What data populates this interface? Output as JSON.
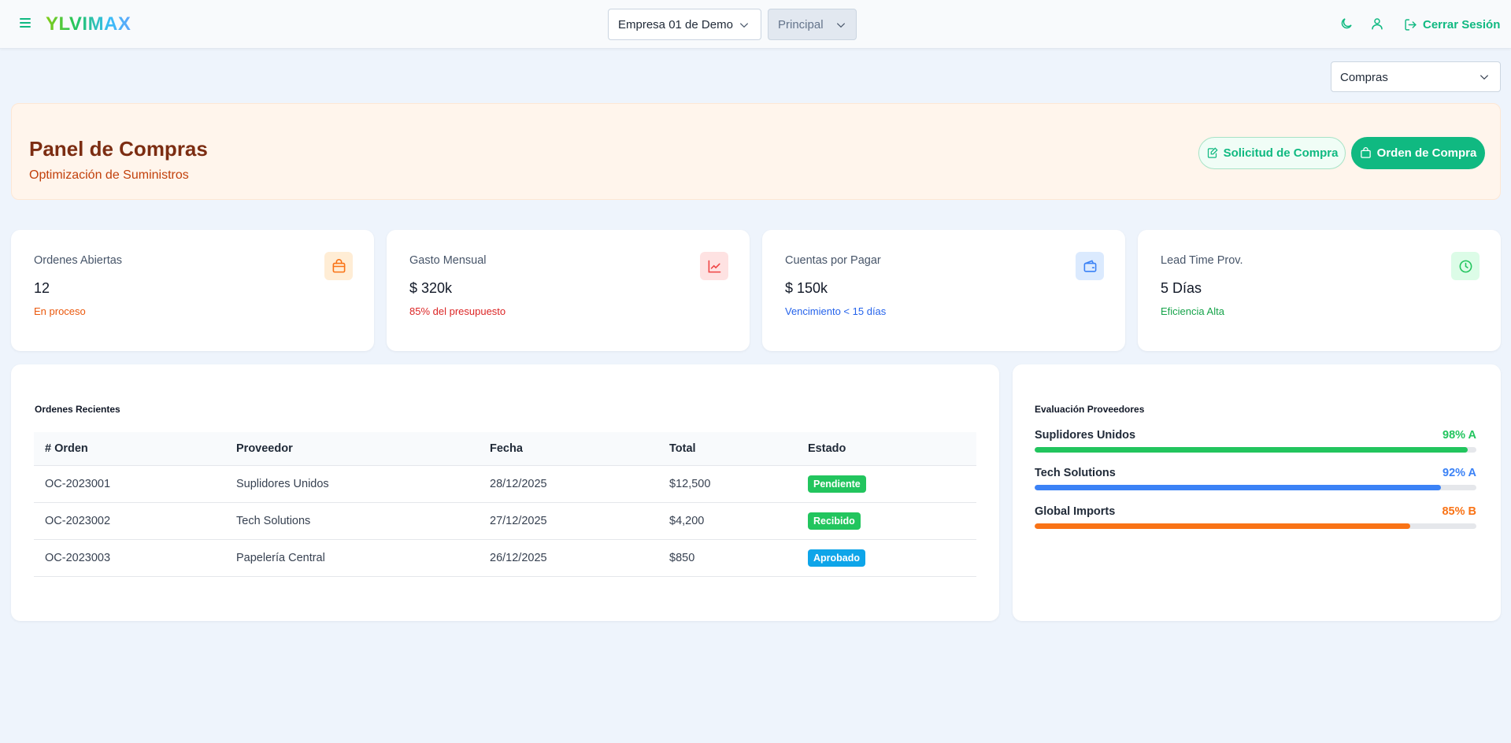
{
  "app": {
    "brand": "YLVIMAX"
  },
  "topbar": {
    "company_select": "Empresa 01 de Demo",
    "branch_select": "Principal",
    "logout_label": "Cerrar Sesión",
    "icons": [
      "menu-icon",
      "moon-icon",
      "user-icon",
      "logout-icon"
    ]
  },
  "module_select": "Compras",
  "hero": {
    "title": "Panel de Compras",
    "subtitle": "Optimización de Suministros",
    "btn_request": "Solicitud de Compra",
    "btn_order": "Orden de Compra"
  },
  "kpis": [
    {
      "label": "Ordenes Abiertas",
      "value": "12",
      "note": "En proceso",
      "note_color": "#ea580c",
      "icon": "shopping-bag-icon",
      "icon_bg": "#ffedd5",
      "icon_color": "#f97316"
    },
    {
      "label": "Gasto Mensual",
      "value": "$ 320k",
      "note": "85% del presupuesto",
      "note_color": "#dc2626",
      "icon": "trending-up-icon",
      "icon_bg": "#fee2e2",
      "icon_color": "#ef4444"
    },
    {
      "label": "Cuentas por Pagar",
      "value": "$ 150k",
      "note": "Vencimiento < 15 días",
      "note_color": "#2563eb",
      "icon": "wallet-icon",
      "icon_bg": "#dbeafe",
      "icon_color": "#3b82f6"
    },
    {
      "label": "Lead Time Prov.",
      "value": "5 Días",
      "note": "Eficiencia Alta",
      "note_color": "#16a34a",
      "icon": "clock-icon",
      "icon_bg": "#dcfce7",
      "icon_color": "#22c55e"
    }
  ],
  "orders": {
    "title": "Ordenes Recientes",
    "columns": [
      "# Orden",
      "Proveedor",
      "Fecha",
      "Total",
      "Estado"
    ],
    "rows": [
      {
        "id": "OC-2023001",
        "supplier": "Suplidores Unidos",
        "date": "28/12/2025",
        "total": "$12,500",
        "status": "Pendiente",
        "status_color": "#22c55e"
      },
      {
        "id": "OC-2023002",
        "supplier": "Tech Solutions",
        "date": "27/12/2025",
        "total": "$4,200",
        "status": "Recibido",
        "status_color": "#22c55e"
      },
      {
        "id": "OC-2023003",
        "supplier": "Papelería Central",
        "date": "26/12/2025",
        "total": "$850",
        "status": "Aprobado",
        "status_color": "#0ea5e9"
      }
    ]
  },
  "suppliers": {
    "title": "Evaluación Proveedores",
    "items": [
      {
        "name": "Suplidores Unidos",
        "score": "98% A",
        "percent": 98,
        "color": "#22c55e"
      },
      {
        "name": "Tech Solutions",
        "score": "92% A",
        "percent": 92,
        "color": "#3b82f6"
      },
      {
        "name": "Global Imports",
        "score": "85% B",
        "percent": 85,
        "color": "#f97316"
      }
    ]
  }
}
